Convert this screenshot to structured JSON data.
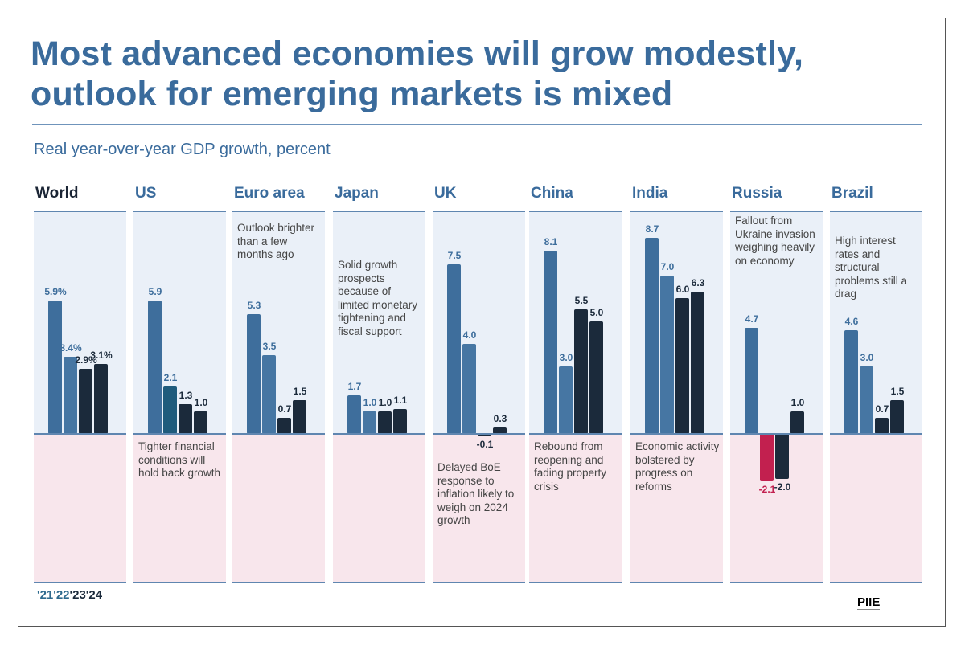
{
  "title_line1": "Most advanced economies will grow modestly,",
  "title_line2": "outlook for emerging markets is mixed",
  "subtitle": "Real year-over-year GDP growth, percent",
  "logo": "PIIE",
  "colors": {
    "y21": "#3e6e9c",
    "y22": "#4676a3",
    "y22_us": "#1f5b7c",
    "y23": "#1b2a3b",
    "y24": "#1b2a3b",
    "negative_highlight": "#c2204f",
    "upper_bg": "#eaf0f8",
    "lower_bg": "#f8e6ec"
  },
  "chart_data": {
    "type": "bar",
    "years": [
      "'21",
      "'22",
      "'23",
      "'24"
    ],
    "ylim": [
      -2.1,
      9.9
    ],
    "grid": false,
    "panels": [
      {
        "name": "World",
        "values": [
          5.9,
          3.4,
          2.9,
          3.1
        ],
        "labels": [
          "5.9%",
          "3.4%",
          "2.9%",
          "3.1%"
        ],
        "note": "",
        "note_pos": ""
      },
      {
        "name": "US",
        "values": [
          5.9,
          2.1,
          1.3,
          1.0
        ],
        "labels": [
          "5.9",
          "2.1",
          "1.3",
          "1.0"
        ],
        "note": "Tighter financial conditions will hold back growth",
        "note_pos": "below"
      },
      {
        "name": "Euro area",
        "values": [
          5.3,
          3.5,
          0.7,
          1.5
        ],
        "labels": [
          "5.3",
          "3.5",
          "0.7",
          "1.5"
        ],
        "note": "Outlook brighter than a few months ago",
        "note_pos": "above"
      },
      {
        "name": "Japan",
        "values": [
          1.7,
          1.0,
          1.0,
          1.1
        ],
        "labels": [
          "1.7",
          "1.0",
          "1.0",
          "1.1"
        ],
        "note": "Solid growth prospects because of limited monetary tightening and fiscal support",
        "note_pos": "above"
      },
      {
        "name": "UK",
        "values": [
          7.5,
          4.0,
          -0.1,
          0.3
        ],
        "labels": [
          "7.5",
          "4.0",
          "-0.1",
          "0.3"
        ],
        "note": "Delayed BoE response to inflation likely to weigh on 2024 growth",
        "note_pos": "below"
      },
      {
        "name": "China",
        "values": [
          8.1,
          3.0,
          5.5,
          5.0
        ],
        "labels": [
          "8.1",
          "3.0",
          "5.5",
          "5.0"
        ],
        "note": "Rebound from reopening and fading property crisis",
        "note_pos": "below"
      },
      {
        "name": "India",
        "values": [
          8.7,
          7.0,
          6.0,
          6.3
        ],
        "labels": [
          "8.7",
          "7.0",
          "6.0",
          "6.3"
        ],
        "note": "Economic activity bolstered by progress on reforms",
        "note_pos": "below"
      },
      {
        "name": "Russia",
        "values": [
          4.7,
          -2.1,
          -2.0,
          1.0
        ],
        "labels": [
          "4.7",
          "-2.1",
          "-2.0",
          "1.0"
        ],
        "note": "Fallout from Ukraine invasion weighing heavily on economy",
        "note_pos": "above"
      },
      {
        "name": "Brazil",
        "values": [
          4.6,
          3.0,
          0.7,
          1.5
        ],
        "labels": [
          "4.6",
          "3.0",
          "0.7",
          "1.5"
        ],
        "note": "High interest rates and structural problems still a drag",
        "note_pos": "above"
      }
    ]
  }
}
